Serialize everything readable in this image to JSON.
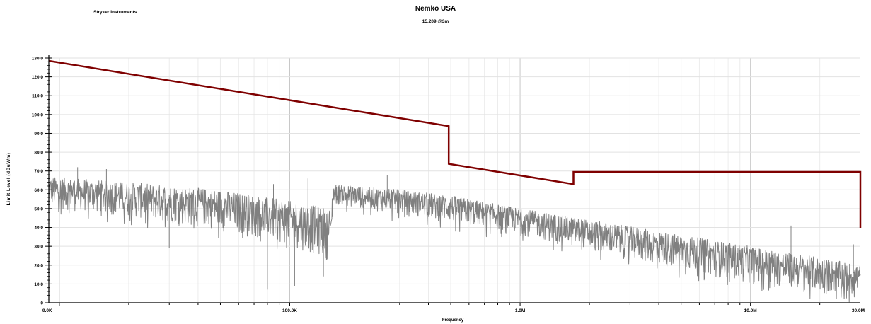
{
  "header": {
    "company": "Stryker Instruments",
    "title": "Nemko USA",
    "subtitle": "15.209 @3m"
  },
  "chart_data": {
    "type": "line",
    "title": "Nemko USA",
    "subtitle": "15.209 @3m",
    "xlabel": "Frequency",
    "ylabel": "Limit Level (dBuV/m)",
    "xscale": "log",
    "xlim": [
      9000,
      30000000
    ],
    "ylim": [
      0,
      130
    ],
    "grid": true,
    "x_ticks": [
      {
        "value": 9000,
        "label": "9.0K"
      },
      {
        "value": 100000,
        "label": "100.0K"
      },
      {
        "value": 1000000,
        "label": "1.0M"
      },
      {
        "value": 10000000,
        "label": "10.0M"
      },
      {
        "value": 30000000,
        "label": "30.0M"
      }
    ],
    "y_ticks": [
      {
        "value": 0,
        "label": "0"
      },
      {
        "value": 10,
        "label": "10.0"
      },
      {
        "value": 20,
        "label": "20.0"
      },
      {
        "value": 30,
        "label": "30.0"
      },
      {
        "value": 40,
        "label": "40.0"
      },
      {
        "value": 50,
        "label": "50.0"
      },
      {
        "value": 60,
        "label": "60.0"
      },
      {
        "value": 70,
        "label": "70.0"
      },
      {
        "value": 80,
        "label": "80.0"
      },
      {
        "value": 90,
        "label": "90.0"
      },
      {
        "value": 100,
        "label": "100.0"
      },
      {
        "value": 110,
        "label": "110.0"
      },
      {
        "value": 120,
        "label": "120.0"
      },
      {
        "value": 130,
        "label": "130.0"
      }
    ],
    "series": [
      {
        "kind": "limit",
        "color": "#7f0000",
        "x": [
          9000,
          490000,
          490000,
          1705000,
          1705000,
          30000000,
          30000000
        ],
        "y": [
          128.5,
          93.8,
          73.8,
          63.0,
          69.5,
          69.5,
          39.5
        ]
      },
      {
        "kind": "measured",
        "color": "#808080",
        "envelope": {
          "x": [
            9000,
            20000,
            50000,
            100000,
            150000,
            155000,
            300000,
            500000,
            1000000,
            2000000,
            5000000,
            10000000,
            20000000,
            30000000
          ],
          "upper": [
            67,
            64,
            60,
            54,
            50,
            63,
            60,
            57,
            50,
            44,
            36,
            30,
            24,
            20
          ],
          "lower": [
            50,
            45,
            38,
            30,
            22,
            52,
            47,
            42,
            36,
            27,
            17,
            10,
            5,
            3
          ]
        },
        "spikes": [
          {
            "x": 12000,
            "y": 72
          },
          {
            "x": 16000,
            "y": 71
          },
          {
            "x": 85000,
            "y": 63
          },
          {
            "x": 120000,
            "y": 66
          },
          {
            "x": 265000,
            "y": 68
          },
          {
            "x": 15000000,
            "y": 41
          },
          {
            "x": 28000000,
            "y": 31
          }
        ],
        "dips": [
          {
            "x": 30000,
            "y": 29
          },
          {
            "x": 80000,
            "y": 7
          },
          {
            "x": 105000,
            "y": 9
          },
          {
            "x": 140000,
            "y": 14
          }
        ]
      }
    ]
  }
}
